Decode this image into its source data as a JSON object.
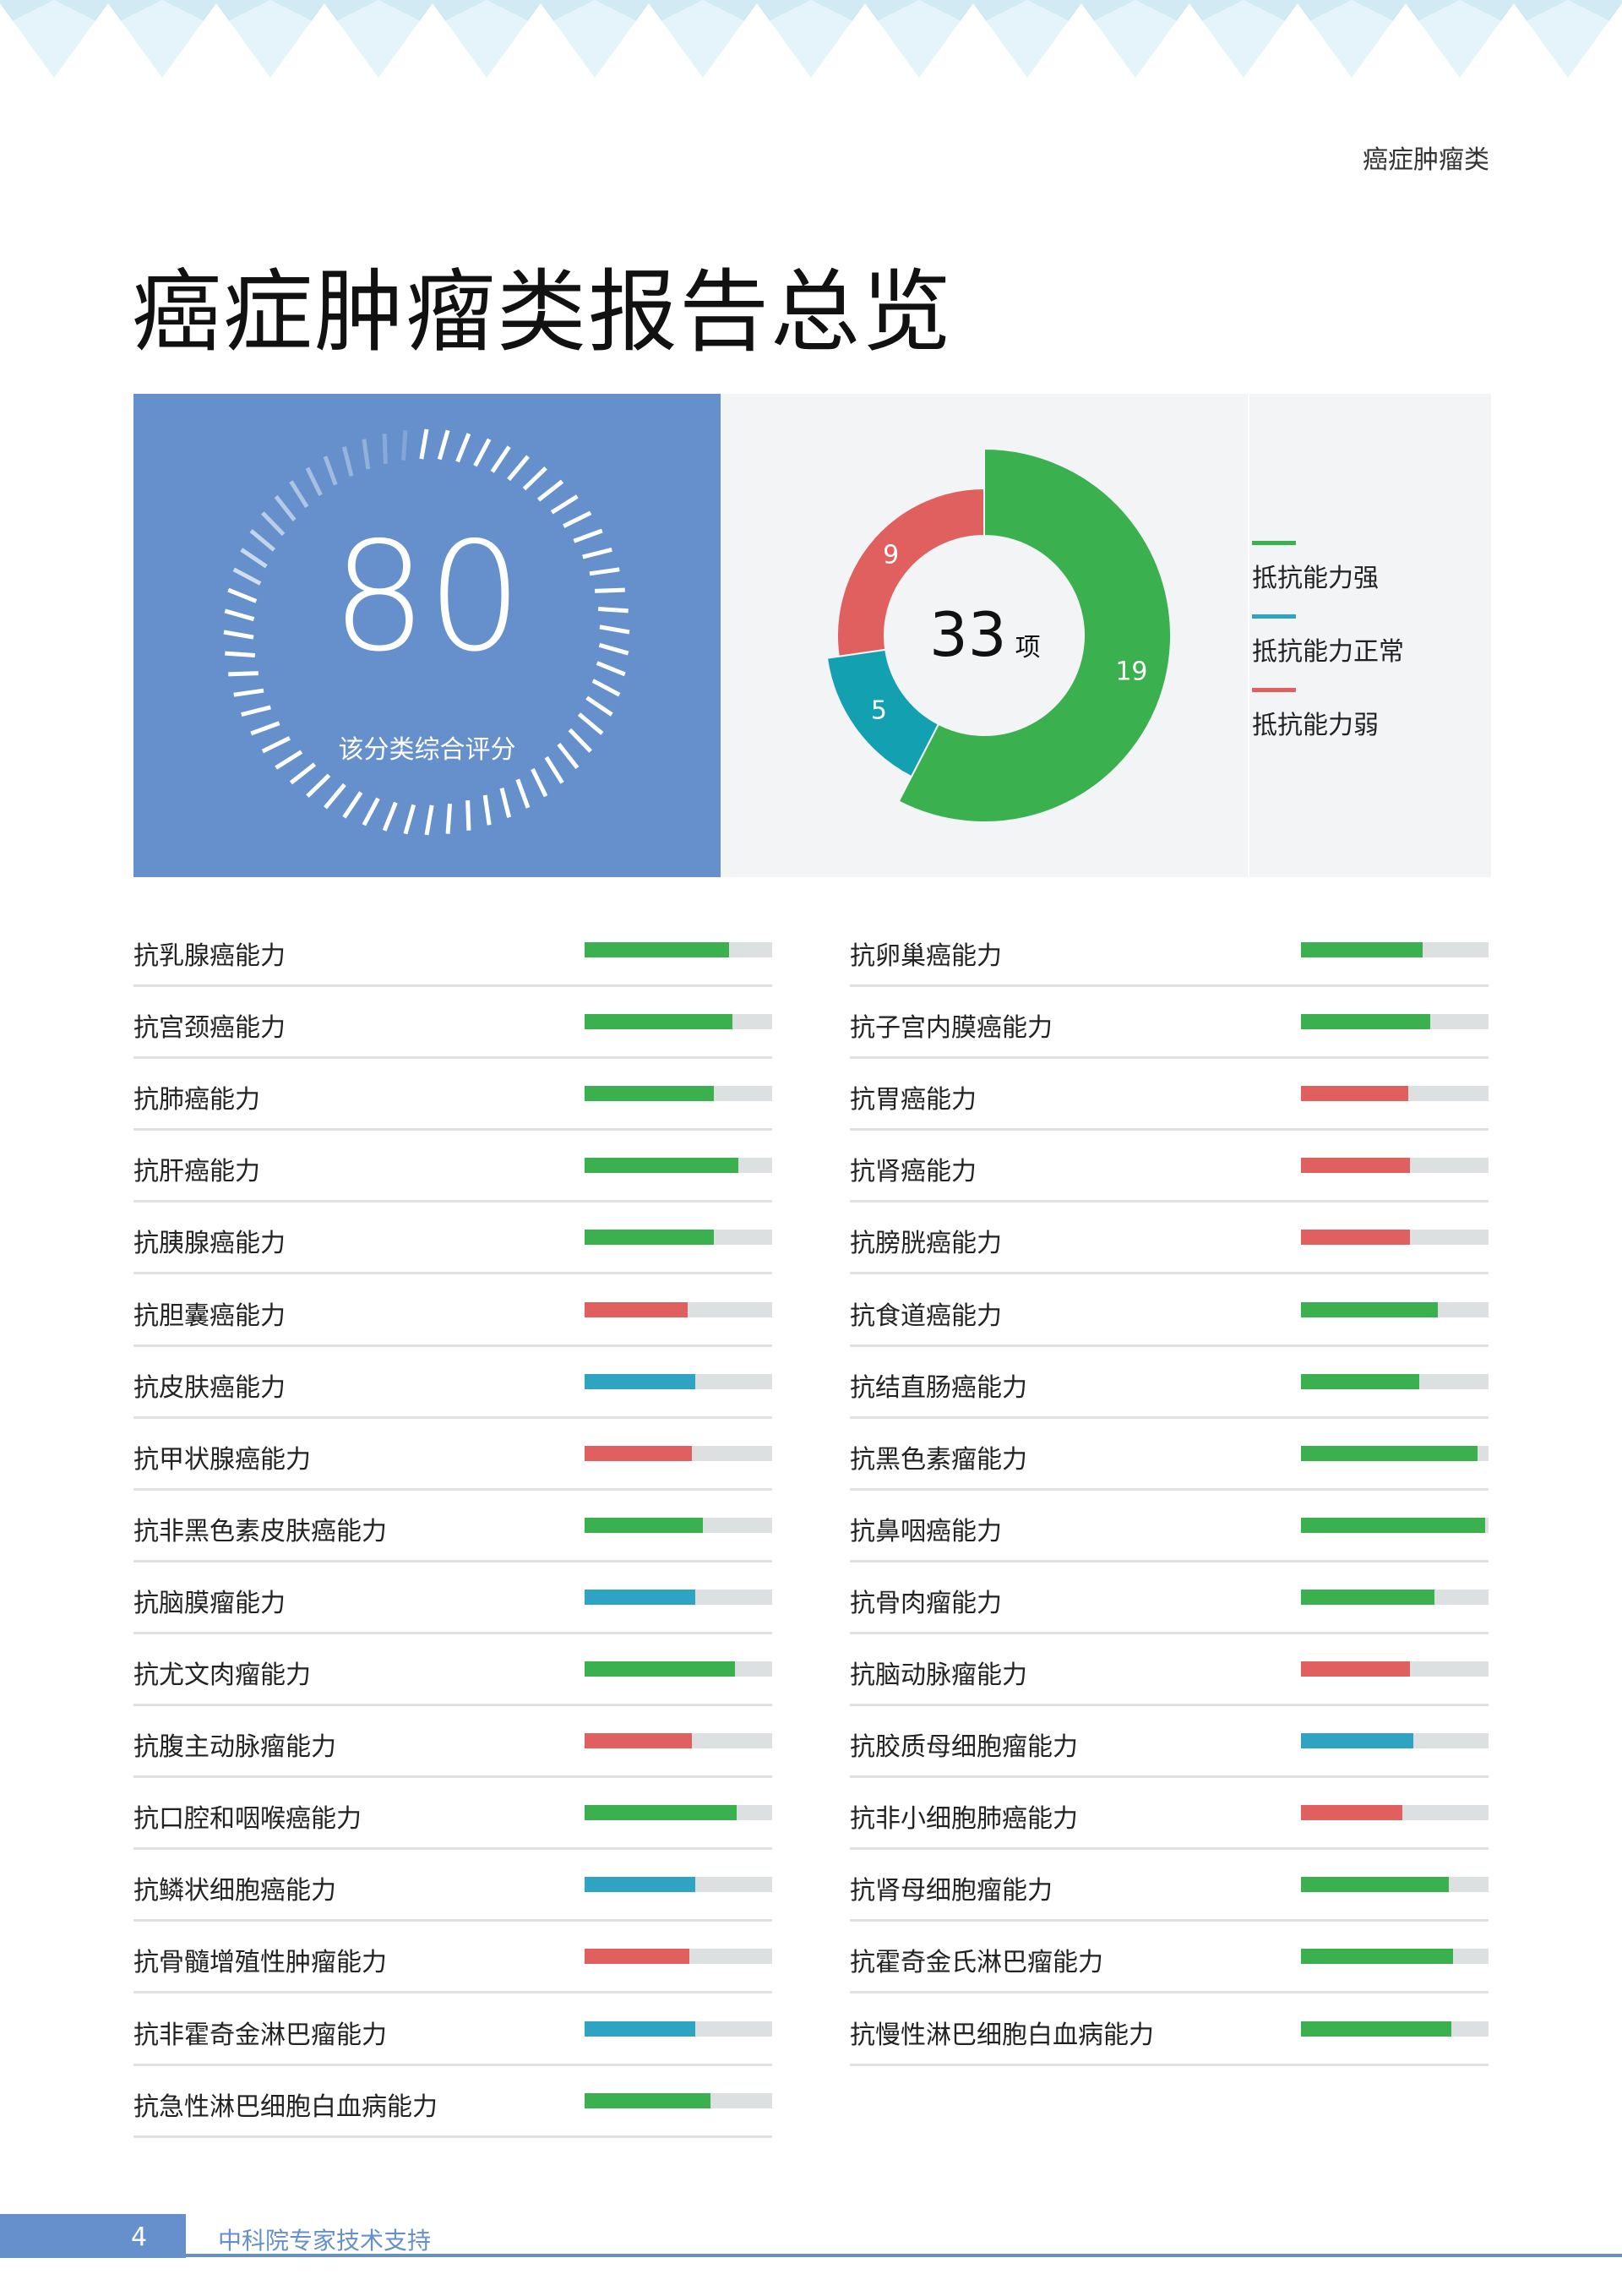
{
  "header": {
    "section_tag": "癌症肿瘤类",
    "title": "癌症肿瘤类报告总览"
  },
  "score": {
    "value": "80",
    "label": "该分类综合评分",
    "fraction": 0.8
  },
  "summary": {
    "total": "33",
    "unit": "项",
    "segments": [
      {
        "key": "strong",
        "label": "抵抗能力强",
        "count": 19,
        "color": "#3bb04f"
      },
      {
        "key": "normal",
        "label": "抵抗能力正常",
        "count": 5,
        "color": "#13a0b0"
      },
      {
        "key": "weak",
        "label": "抵抗能力弱",
        "count": 9,
        "color": "#e05f5f"
      }
    ]
  },
  "colors": {
    "strong": "#3bb04f",
    "normal": "#2fa3c2",
    "weak": "#e05f5f",
    "panel_blue": "#6590cb"
  },
  "items_left": [
    {
      "label": "抗乳腺癌能力",
      "level": "strong",
      "value": 0.77
    },
    {
      "label": "抗宫颈癌能力",
      "level": "strong",
      "value": 0.79
    },
    {
      "label": "抗肺癌能力",
      "level": "strong",
      "value": 0.69
    },
    {
      "label": "抗肝癌能力",
      "level": "strong",
      "value": 0.82
    },
    {
      "label": "抗胰腺癌能力",
      "level": "strong",
      "value": 0.69
    },
    {
      "label": "抗胆囊癌能力",
      "level": "weak",
      "value": 0.55
    },
    {
      "label": "抗皮肤癌能力",
      "level": "normal",
      "value": 0.59
    },
    {
      "label": "抗甲状腺癌能力",
      "level": "weak",
      "value": 0.57
    },
    {
      "label": "抗非黑色素皮肤癌能力",
      "level": "strong",
      "value": 0.63
    },
    {
      "label": "抗脑膜瘤能力",
      "level": "normal",
      "value": 0.59
    },
    {
      "label": "抗尤文肉瘤能力",
      "level": "strong",
      "value": 0.8
    },
    {
      "label": "抗腹主动脉瘤能力",
      "level": "weak",
      "value": 0.57
    },
    {
      "label": "抗口腔和咽喉癌能力",
      "level": "strong",
      "value": 0.81
    },
    {
      "label": "抗鳞状细胞癌能力",
      "level": "normal",
      "value": 0.59
    },
    {
      "label": "抗骨髓增殖性肿瘤能力",
      "level": "weak",
      "value": 0.56
    },
    {
      "label": "抗非霍奇金淋巴瘤能力",
      "level": "normal",
      "value": 0.59
    },
    {
      "label": "抗急性淋巴细胞白血病能力",
      "level": "strong",
      "value": 0.67
    }
  ],
  "items_right": [
    {
      "label": "抗卵巢癌能力",
      "level": "strong",
      "value": 0.65
    },
    {
      "label": "抗子宫内膜癌能力",
      "level": "strong",
      "value": 0.69
    },
    {
      "label": "抗胃癌能力",
      "level": "weak",
      "value": 0.57
    },
    {
      "label": "抗肾癌能力",
      "level": "weak",
      "value": 0.58
    },
    {
      "label": "抗膀胱癌能力",
      "level": "weak",
      "value": 0.58
    },
    {
      "label": "抗食道癌能力",
      "level": "strong",
      "value": 0.73
    },
    {
      "label": "抗结直肠癌能力",
      "level": "strong",
      "value": 0.63
    },
    {
      "label": "抗黑色素瘤能力",
      "level": "strong",
      "value": 0.94
    },
    {
      "label": "抗鼻咽癌能力",
      "level": "strong",
      "value": 0.98
    },
    {
      "label": "抗骨肉瘤能力",
      "level": "strong",
      "value": 0.71
    },
    {
      "label": "抗脑动脉瘤能力",
      "level": "weak",
      "value": 0.58
    },
    {
      "label": "抗胶质母细胞瘤能力",
      "level": "normal",
      "value": 0.6
    },
    {
      "label": "抗非小细胞肺癌能力",
      "level": "weak",
      "value": 0.54
    },
    {
      "label": "抗肾母细胞瘤能力",
      "level": "strong",
      "value": 0.79
    },
    {
      "label": "抗霍奇金氏淋巴瘤能力",
      "level": "strong",
      "value": 0.81
    },
    {
      "label": "抗慢性淋巴细胞白血病能力",
      "level": "strong",
      "value": 0.8
    }
  ],
  "footer": {
    "page_number": "4",
    "text": "中科院专家技术支持"
  }
}
